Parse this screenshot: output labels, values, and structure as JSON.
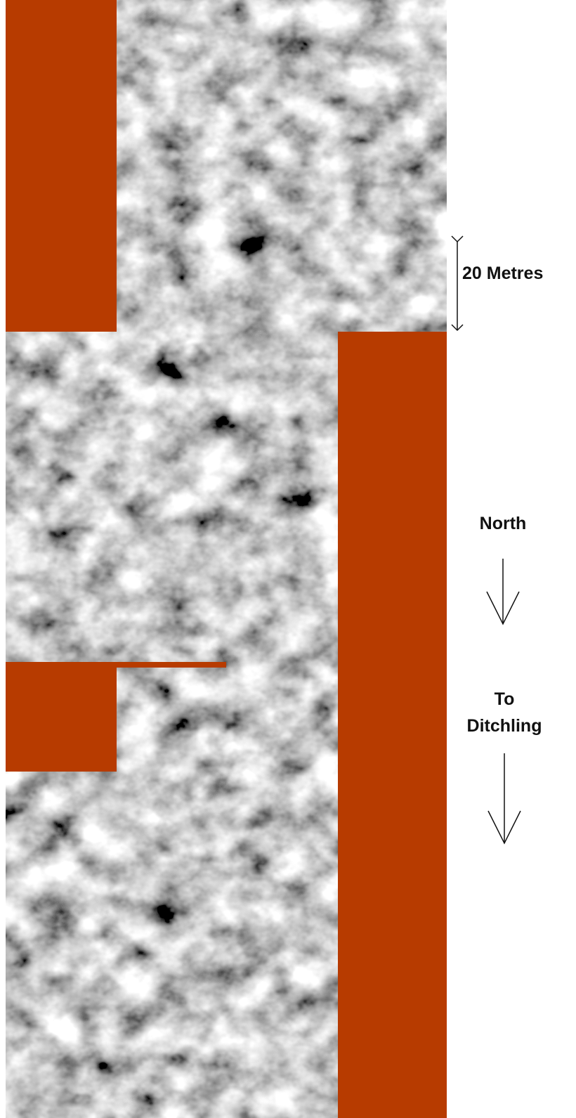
{
  "labels": {
    "scale": "20 Metres",
    "direction": "North",
    "destination": [
      "To",
      "Ditchling"
    ]
  }
}
